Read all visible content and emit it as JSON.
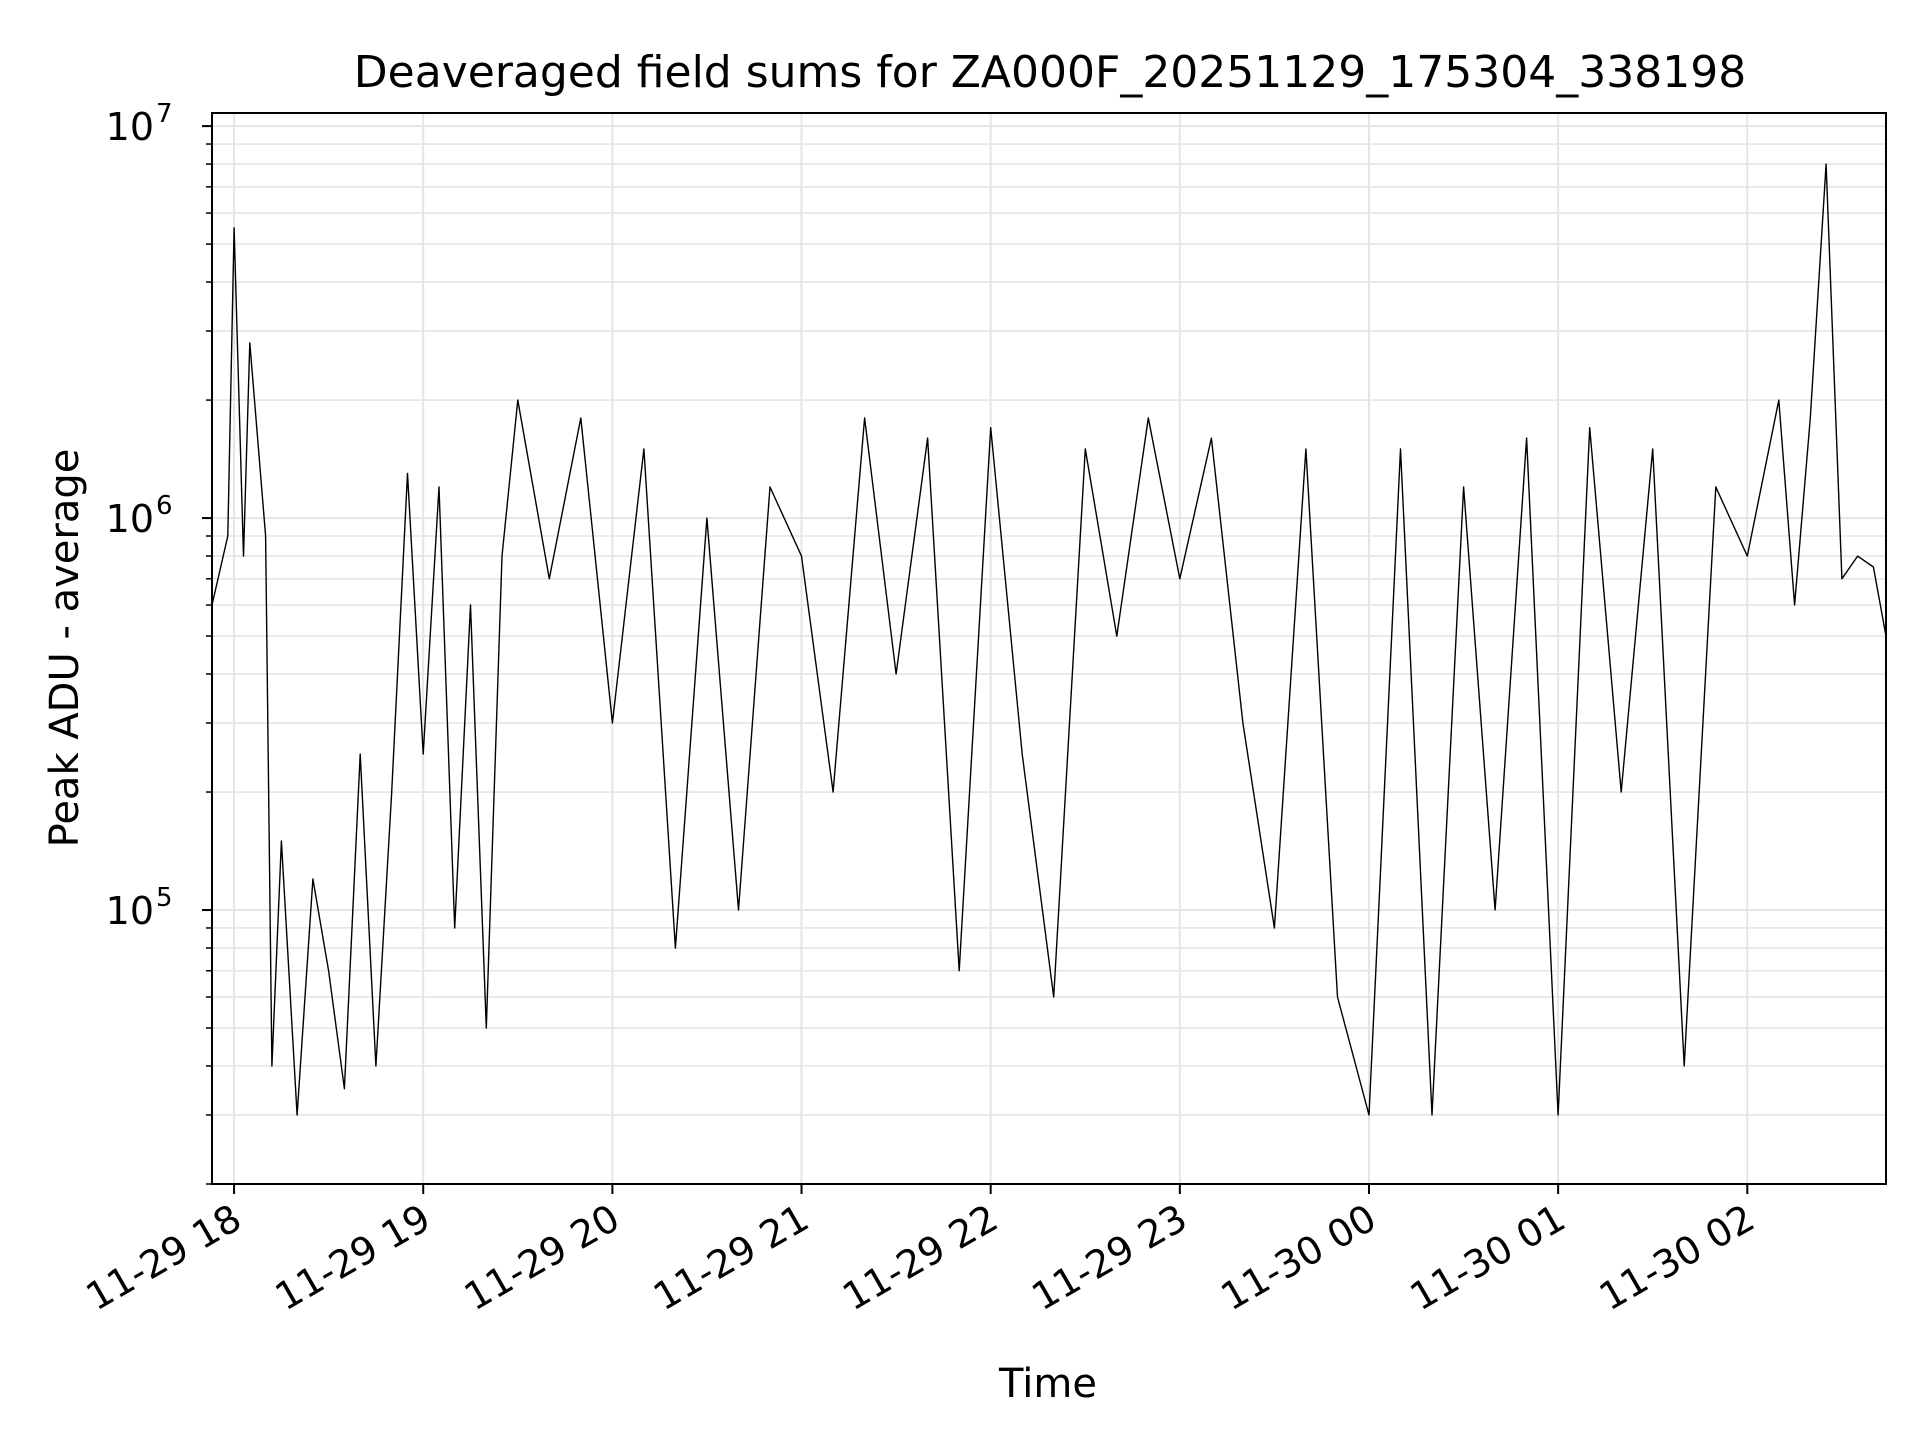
{
  "chart_data": {
    "type": "line",
    "title": "Deaveraged field sums for ZA000F_20251129_175304_338198",
    "xlabel": "Time",
    "ylabel": "Peak ADU - average",
    "y_scale": "log",
    "ylim": [
      20000,
      10800000
    ],
    "xlim": [
      "11-29 17:53",
      "11-30 02:44"
    ],
    "grid": true,
    "grid_color": "#e5e5e5",
    "line_color": "#000000",
    "x_ticks": [
      "11-29 18",
      "11-29 19",
      "11-29 20",
      "11-29 21",
      "11-29 22",
      "11-29 23",
      "11-30 00",
      "11-30 01",
      "11-30 02"
    ],
    "x_tick_times": [
      "11-29 18:00",
      "11-29 19:00",
      "11-29 20:00",
      "11-29 21:00",
      "11-29 22:00",
      "11-29 23:00",
      "11-30 00:00",
      "11-30 01:00",
      "11-30 02:00"
    ],
    "y_ticks": [
      {
        "value": 100000,
        "base": "10",
        "exp": "5"
      },
      {
        "value": 1000000,
        "base": "10",
        "exp": "6"
      },
      {
        "value": 10000000,
        "base": "10",
        "exp": "7"
      }
    ],
    "series": [
      {
        "x": [
          "11-29 17:53",
          "11-29 17:58",
          "11-29 18:00",
          "11-29 18:03",
          "11-29 18:05",
          "11-29 18:10",
          "11-29 18:12",
          "11-29 18:15",
          "11-29 18:20",
          "11-29 18:25",
          "11-29 18:30",
          "11-29 18:35",
          "11-29 18:40",
          "11-29 18:45",
          "11-29 18:50",
          "11-29 18:55",
          "11-29 19:00",
          "11-29 19:05",
          "11-29 19:10",
          "11-29 19:15",
          "11-29 19:20",
          "11-29 19:25",
          "11-29 19:30",
          "11-29 19:40",
          "11-29 19:50",
          "11-29 20:00",
          "11-29 20:10",
          "11-29 20:20",
          "11-29 20:30",
          "11-29 20:40",
          "11-29 20:50",
          "11-29 21:00",
          "11-29 21:10",
          "11-29 21:20",
          "11-29 21:30",
          "11-29 21:40",
          "11-29 21:50",
          "11-29 22:00",
          "11-29 22:10",
          "11-29 22:20",
          "11-29 22:30",
          "11-29 22:40",
          "11-29 22:50",
          "11-29 23:00",
          "11-29 23:10",
          "11-29 23:20",
          "11-29 23:30",
          "11-29 23:40",
          "11-29 23:50",
          "11-30 00:00",
          "11-30 00:10",
          "11-30 00:20",
          "11-30 00:30",
          "11-30 00:40",
          "11-30 00:50",
          "11-30 01:00",
          "11-30 01:10",
          "11-30 01:20",
          "11-30 01:30",
          "11-30 01:40",
          "11-30 01:50",
          "11-30 02:00",
          "11-30 02:10",
          "11-30 02:15",
          "11-30 02:20",
          "11-30 02:25",
          "11-30 02:30",
          "11-30 02:35",
          "11-30 02:40",
          "11-30 02:44"
        ],
        "y": [
          600000,
          900000,
          5500000,
          800000,
          2800000,
          900000,
          40000,
          150000,
          30000,
          120000,
          70000,
          35000,
          250000,
          40000,
          200000,
          1300000,
          250000,
          1200000,
          90000,
          600000,
          50000,
          800000,
          2000000,
          700000,
          1800000,
          300000,
          1500000,
          80000,
          1000000,
          100000,
          1200000,
          800000,
          200000,
          1800000,
          400000,
          1600000,
          70000,
          1700000,
          250000,
          60000,
          1500000,
          500000,
          1800000,
          700000,
          1600000,
          300000,
          90000,
          1500000,
          60000,
          30000,
          1500000,
          30000,
          1200000,
          100000,
          1600000,
          30000,
          1700000,
          200000,
          1500000,
          40000,
          1200000,
          800000,
          2000000,
          600000,
          1800000,
          8000000,
          700000,
          800000,
          750000,
          500000
        ]
      }
    ]
  }
}
